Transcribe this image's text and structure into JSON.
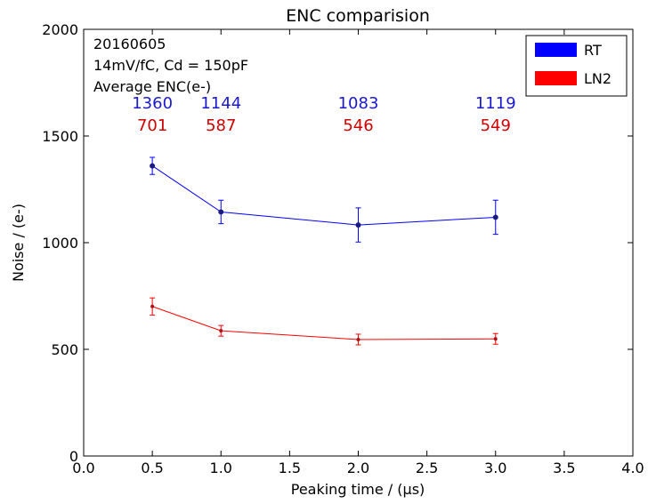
{
  "chart_data": {
    "type": "line",
    "title": "ENC comparision",
    "xlabel": "Peaking time / (μs)",
    "ylabel": "Noise /  (e-)",
    "xlim": [
      0.0,
      4.0
    ],
    "ylim": [
      0,
      2000
    ],
    "xticks": [
      0.0,
      0.5,
      1.0,
      1.5,
      2.0,
      2.5,
      3.0,
      3.5,
      4.0
    ],
    "xtick_labels": [
      "0.0",
      "0.5",
      "1.0",
      "1.5",
      "2.0",
      "2.5",
      "3.0",
      "3.5",
      "4.0"
    ],
    "yticks": [
      0,
      500,
      1000,
      1500,
      2000
    ],
    "ytick_labels": [
      "0",
      "500",
      "1000",
      "1500",
      "2000"
    ],
    "grid": false,
    "legend_position": "top-right",
    "annotations": [
      "20160605",
      "14mV/fC, Cd = 150pF",
      "Average ENC(e-)"
    ],
    "series": [
      {
        "name": "RT",
        "color": "#0000ff",
        "x": [
          0.5,
          1.0,
          2.0,
          3.0
        ],
        "y": [
          1360,
          1144,
          1083,
          1119
        ],
        "yerr": [
          40,
          55,
          80,
          80
        ],
        "value_labels": [
          "1360",
          "1144",
          "1083",
          "1119"
        ]
      },
      {
        "name": "LN2",
        "color": "#ff0000",
        "x": [
          0.5,
          1.0,
          2.0,
          3.0
        ],
        "y": [
          701,
          587,
          546,
          549
        ],
        "yerr": [
          40,
          25,
          25,
          25
        ],
        "value_labels": [
          "701",
          "587",
          "546",
          "549"
        ]
      }
    ]
  }
}
